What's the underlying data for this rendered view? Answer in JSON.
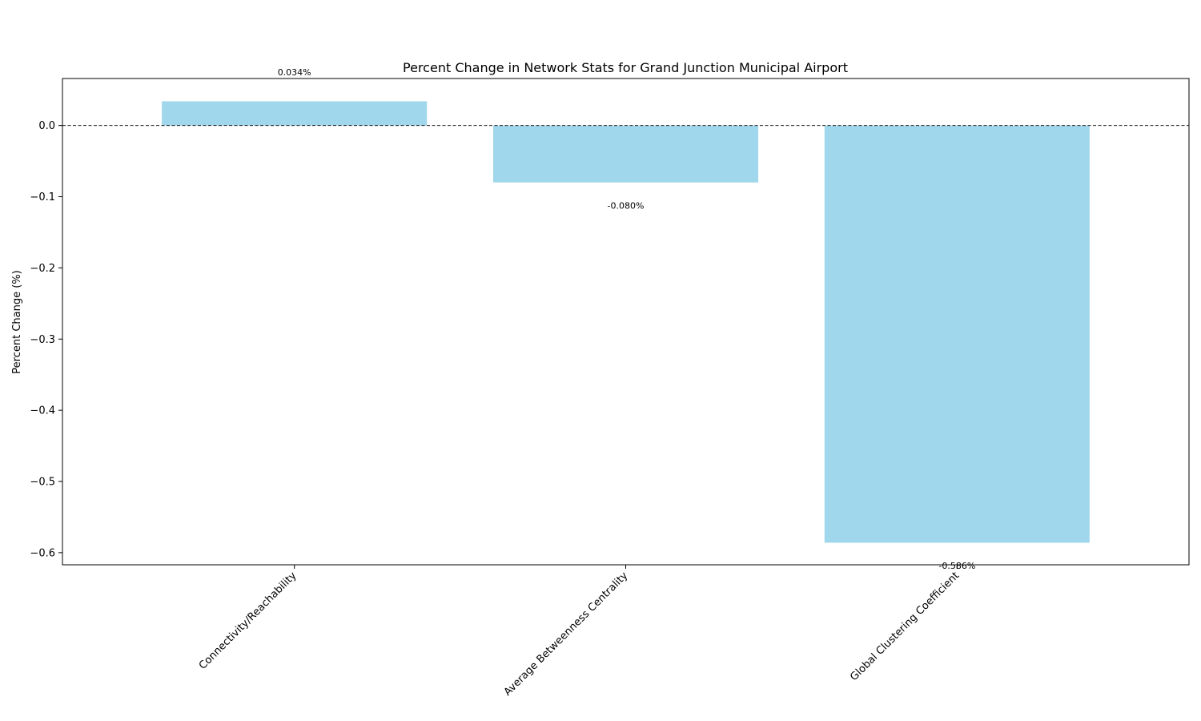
{
  "chart_data": {
    "type": "bar",
    "title": "Percent Change in Network Stats for Grand Junction Municipal Airport",
    "xlabel": "",
    "ylabel": "Percent Change (%)",
    "categories": [
      "Connectivity/Reachability",
      "Average Betweenness Centrality",
      "Global Clustering Coefficient"
    ],
    "values": [
      0.034,
      -0.08,
      -0.586
    ],
    "data_labels": [
      "0.034%",
      "-0.080%",
      "-0.586%"
    ],
    "ylim": [
      -0.617,
      0.066
    ],
    "yticks": [
      0.0,
      -0.1,
      -0.2,
      -0.3,
      -0.4,
      -0.5,
      -0.6
    ],
    "ytick_labels": [
      "0.0",
      "−0.1",
      "−0.2",
      "−0.3",
      "−0.4",
      "−0.5",
      "−0.6"
    ],
    "zero_line": "dashed",
    "grid": false,
    "legend": "none",
    "bar_color": "#a0d7ec"
  }
}
